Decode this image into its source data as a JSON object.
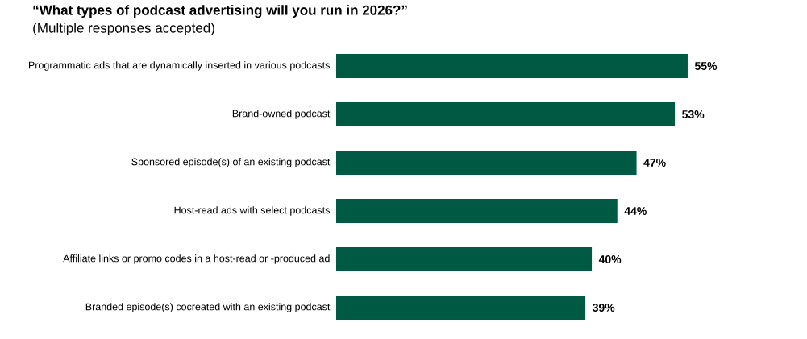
{
  "chart_data": {
    "type": "bar",
    "orientation": "horizontal",
    "title": "“What types of podcast advertising will you run in 2026?”",
    "subtitle": "(Multiple responses accepted)",
    "categories": [
      "Programmatic ads that are dynamically inserted in various podcasts",
      "Brand-owned podcast",
      "Sponsored episode(s) of an existing podcast",
      "Host-read ads with select podcasts",
      "Affiliate links or promo codes in a host-read or -produced ad",
      "Branded episode(s) cocreated with an existing podcast"
    ],
    "values": [
      55,
      53,
      47,
      44,
      40,
      39
    ],
    "value_labels": [
      "55%",
      "53%",
      "47%",
      "44%",
      "40%",
      "39%"
    ],
    "color": "#005a43"
  }
}
